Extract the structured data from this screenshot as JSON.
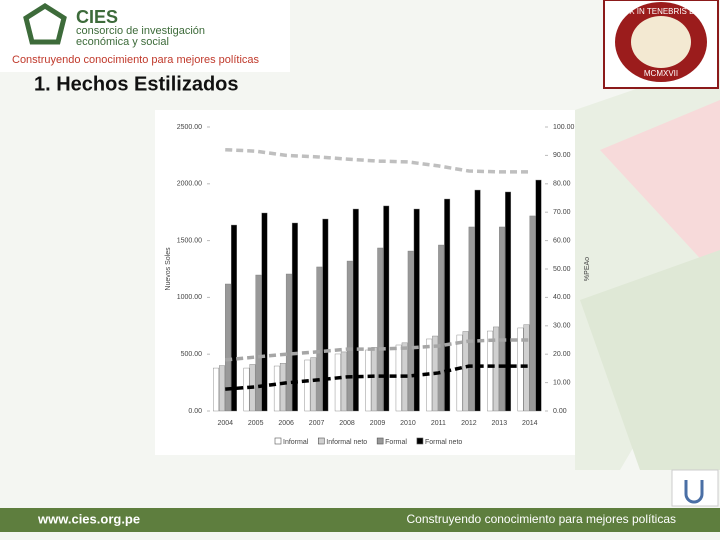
{
  "header": {
    "logo": "CIES",
    "logo_line1": "consorcio de investigación",
    "logo_line2": "económica y social",
    "tagline": "Construyendo conocimiento para mejores políticas",
    "title": "1. Hechos Estilizados",
    "crest_motto": "ET LVX IN TENEBRIS LVCET",
    "crest_year": "MCMXVII"
  },
  "footer": {
    "url": "www.cies.org.pe",
    "tagline": "Construyendo conocimiento para mejores políticas"
  },
  "chart_data": {
    "type": "bar",
    "y_label": "Nuevos Soles",
    "y2_label": "%PEAo",
    "categories": [
      "2004",
      "2005",
      "2006",
      "2007",
      "2008",
      "2009",
      "2010",
      "2011",
      "2012",
      "2013",
      "2014"
    ],
    "ylim": [
      0,
      2500
    ],
    "yticks": [
      {
        "value": 0,
        "label": "0.00"
      },
      {
        "value": 500,
        "label": "500.00"
      },
      {
        "value": 1000,
        "label": "1000.00"
      },
      {
        "value": 1500,
        "label": "1500.00"
      },
      {
        "value": 2000,
        "label": "2000.00"
      },
      {
        "value": 2500,
        "label": "2500.00"
      }
    ],
    "y2lim": [
      0,
      100
    ],
    "y2ticks": [
      {
        "value": 0,
        "label": "0.00"
      },
      {
        "value": 10,
        "label": "10.00"
      },
      {
        "value": 20,
        "label": "20.00"
      },
      {
        "value": 30,
        "label": "30.00"
      },
      {
        "value": 40,
        "label": "40.00"
      },
      {
        "value": 50,
        "label": "50.00"
      },
      {
        "value": 60,
        "label": "60.00"
      },
      {
        "value": 70,
        "label": "70.00"
      },
      {
        "value": 80,
        "label": "80.00"
      },
      {
        "value": 90,
        "label": "90.00"
      },
      {
        "value": 100,
        "label": "100.00"
      }
    ],
    "legend": "bottom",
    "series": [
      {
        "name": "Informal",
        "color": "#ffffff",
        "values": [
          378,
          378,
          396,
          449,
          502,
          537,
          581,
          634,
          669,
          704,
          731
        ]
      },
      {
        "name": "Informal neto",
        "color": "#d0d0d0",
        "values": [
          400,
          410,
          420,
          470,
          520,
          560,
          600,
          660,
          700,
          740,
          760
        ]
      },
      {
        "name": "Formal",
        "color": "#999999",
        "values": [
          1118,
          1197,
          1206,
          1268,
          1320,
          1435,
          1408,
          1461,
          1620,
          1620,
          1717
        ]
      },
      {
        "name": "Formal neto",
        "color": "#000000",
        "values": [
          1637,
          1743,
          1655,
          1690,
          1778,
          1805,
          1778,
          1866,
          1945,
          1928,
          2033
        ]
      },
      {
        "type": "line",
        "axis": "y2",
        "color": "#bfbfbf",
        "dashed": true,
        "values": [
          92,
          91.5,
          90,
          89.5,
          88.7,
          88,
          87.7,
          86.3,
          84.5,
          84.2,
          84.2
        ]
      },
      {
        "type": "line",
        "axis": "y2",
        "color": "#a6a6a6",
        "dashed": true,
        "values": [
          18,
          19,
          20,
          20.8,
          21.8,
          21.8,
          22.2,
          22.9,
          24.6,
          25,
          25
        ]
      },
      {
        "type": "line",
        "axis": "y2",
        "color": "#000000",
        "dashed": true,
        "values": [
          7.7,
          8.5,
          9.9,
          10.9,
          12,
          12.3,
          12.3,
          13.4,
          15.8,
          15.8,
          15.8
        ]
      }
    ]
  }
}
